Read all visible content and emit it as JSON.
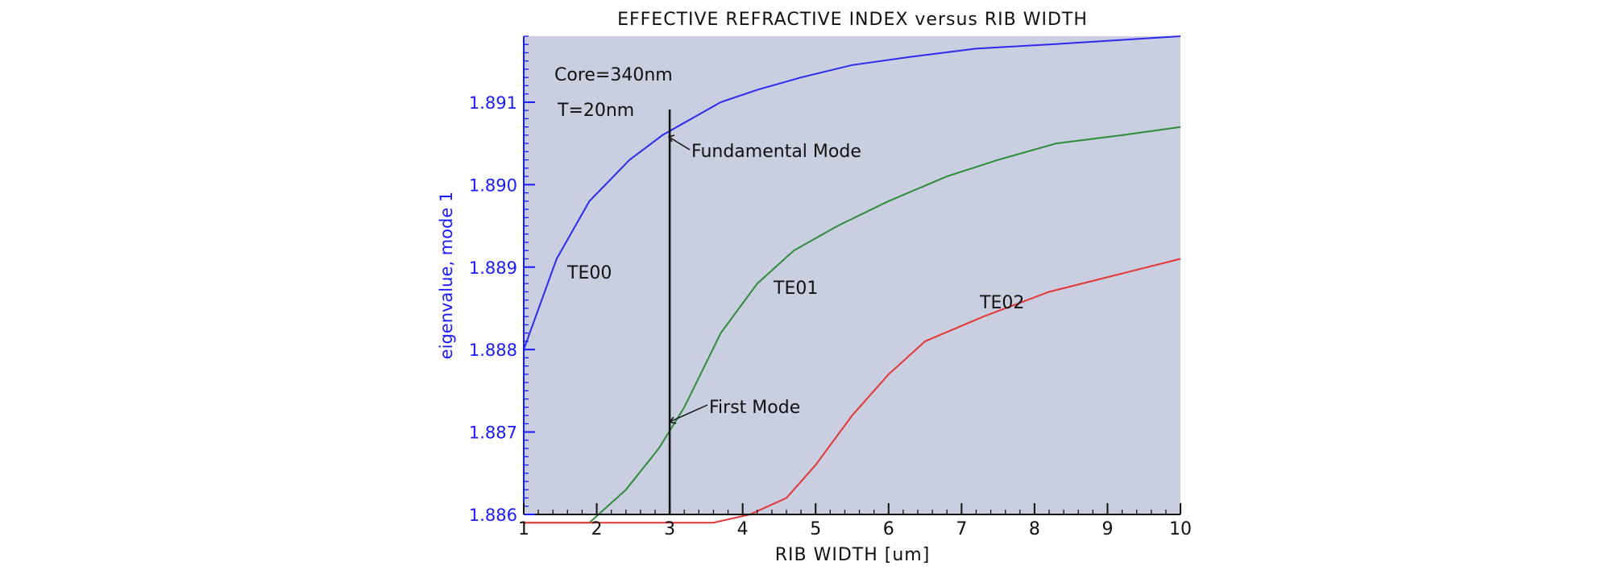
{
  "chart_data": {
    "type": "line",
    "title": "EFFECTIVE REFRACTIVE INDEX versus RIB WIDTH",
    "xlabel": "RIB WIDTH [um]",
    "ylabel": "eigenvalue, mode 1",
    "xlim": [
      1,
      10
    ],
    "ylim": [
      1.886,
      1.8918
    ],
    "xticks": [
      1,
      2,
      3,
      4,
      5,
      6,
      7,
      8,
      9,
      10
    ],
    "yticks": [
      {
        "value": 1.886,
        "label": "1.886"
      },
      {
        "value": 1.887,
        "label": "1.887"
      },
      {
        "value": 1.888,
        "label": "1.888"
      },
      {
        "value": 1.889,
        "label": "1.889"
      },
      {
        "value": 1.89,
        "label": "1.890"
      },
      {
        "value": 1.891,
        "label": "1.891"
      }
    ],
    "grid": false,
    "background": "#c9cfe0",
    "axis_color": "#1a1aff",
    "series": [
      {
        "name": "TE00",
        "color": "#2a2af0",
        "x": [
          1.0,
          1.45,
          1.9,
          2.45,
          2.9,
          3.3,
          3.7,
          4.2,
          4.8,
          5.5,
          6.3,
          7.2,
          8.2,
          9.1,
          10.0
        ],
        "y": [
          1.888,
          1.8891,
          1.8898,
          1.8903,
          1.8906,
          1.8908,
          1.891,
          1.89115,
          1.8913,
          1.89145,
          1.89155,
          1.89165,
          1.8917,
          1.89175,
          1.8918
        ]
      },
      {
        "name": "TE01",
        "color": "#2e8b3a",
        "x": [
          1.0,
          1.9,
          2.4,
          2.85,
          3.2,
          3.7,
          4.2,
          4.7,
          5.3,
          6.0,
          6.8,
          7.5,
          8.3,
          9.2,
          10.0
        ],
        "y": [
          1.8859,
          1.8859,
          1.8863,
          1.8868,
          1.8873,
          1.8882,
          1.8888,
          1.8892,
          1.8895,
          1.8898,
          1.8901,
          1.8903,
          1.8905,
          1.8906,
          1.8907
        ]
      },
      {
        "name": "TE02",
        "color": "#e53535",
        "x": [
          1.0,
          2.0,
          3.0,
          3.6,
          4.1,
          4.6,
          5.0,
          5.5,
          6.0,
          6.5,
          7.3,
          8.2,
          9.1,
          10.0
        ],
        "y": [
          1.8859,
          1.8859,
          1.8859,
          1.8859,
          1.886,
          1.8862,
          1.8866,
          1.8872,
          1.8877,
          1.8881,
          1.8884,
          1.8887,
          1.8889,
          1.8891
        ]
      }
    ],
    "annotations": {
      "core": "Core=340nm",
      "thickness": "T=20nm",
      "fundamental_mode": "Fundamental Mode",
      "first_mode": "First Mode",
      "te00": "TE00",
      "te01": "TE01",
      "te02": "TE02"
    },
    "marker_line_x": 3
  }
}
